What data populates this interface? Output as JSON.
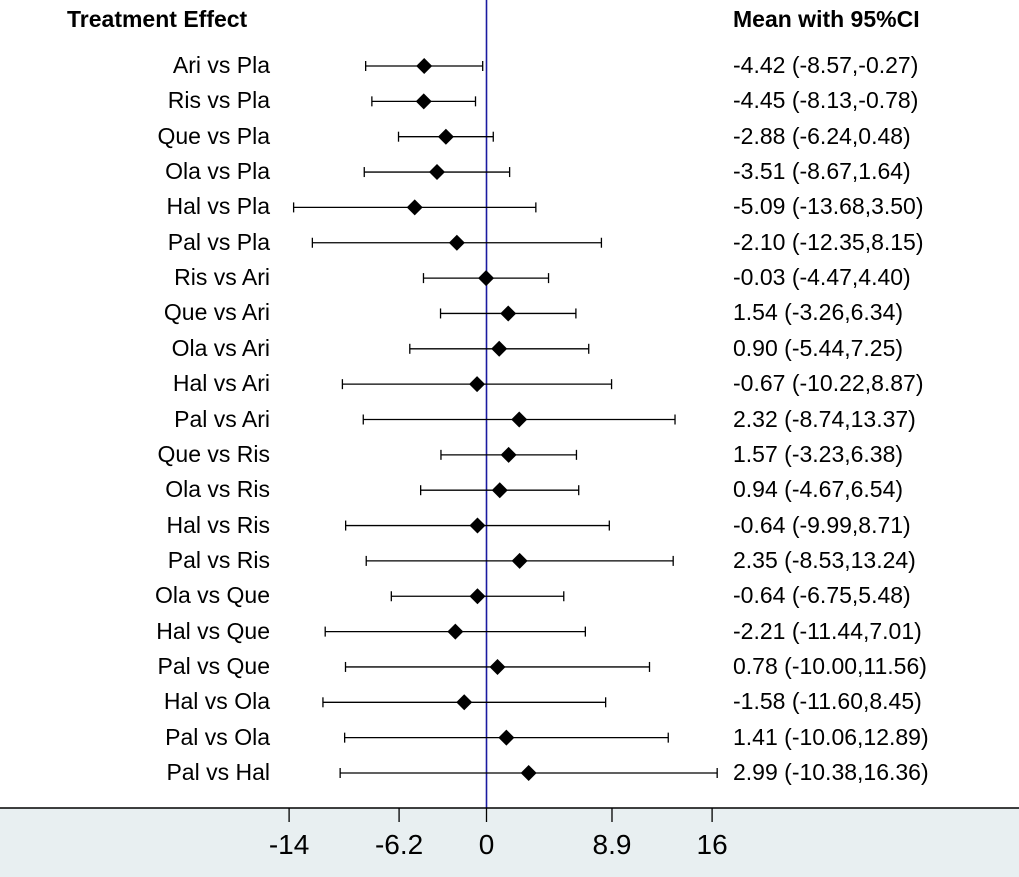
{
  "chart_data": {
    "type": "forest",
    "headers": {
      "left": "Treatment Effect",
      "right": "Mean with 95%CI"
    },
    "rows": [
      {
        "label": "Ari vs Pla",
        "mean": -4.42,
        "lo": -8.57,
        "hi": -0.27,
        "text": "-4.42 (-8.57,-0.27)"
      },
      {
        "label": "Ris vs Pla",
        "mean": -4.45,
        "lo": -8.13,
        "hi": -0.78,
        "text": "-4.45 (-8.13,-0.78)"
      },
      {
        "label": "Que vs Pla",
        "mean": -2.88,
        "lo": -6.24,
        "hi": 0.48,
        "text": "-2.88 (-6.24,0.48)"
      },
      {
        "label": "Ola vs Pla",
        "mean": -3.51,
        "lo": -8.67,
        "hi": 1.64,
        "text": "-3.51 (-8.67,1.64)"
      },
      {
        "label": "Hal vs Pla",
        "mean": -5.09,
        "lo": -13.68,
        "hi": 3.5,
        "text": "-5.09 (-13.68,3.50)"
      },
      {
        "label": "Pal vs Pla",
        "mean": -2.1,
        "lo": -12.35,
        "hi": 8.15,
        "text": "-2.10 (-12.35,8.15)"
      },
      {
        "label": "Ris vs Ari",
        "mean": -0.03,
        "lo": -4.47,
        "hi": 4.4,
        "text": "-0.03 (-4.47,4.40)"
      },
      {
        "label": "Que vs Ari",
        "mean": 1.54,
        "lo": -3.26,
        "hi": 6.34,
        "text": "1.54 (-3.26,6.34)"
      },
      {
        "label": "Ola vs Ari",
        "mean": 0.9,
        "lo": -5.44,
        "hi": 7.25,
        "text": "0.90 (-5.44,7.25)"
      },
      {
        "label": "Hal vs Ari",
        "mean": -0.67,
        "lo": -10.22,
        "hi": 8.87,
        "text": "-0.67 (-10.22,8.87)"
      },
      {
        "label": "Pal vs Ari",
        "mean": 2.32,
        "lo": -8.74,
        "hi": 13.37,
        "text": "2.32 (-8.74,13.37)"
      },
      {
        "label": "Que vs Ris",
        "mean": 1.57,
        "lo": -3.23,
        "hi": 6.38,
        "text": "1.57 (-3.23,6.38)"
      },
      {
        "label": "Ola vs Ris",
        "mean": 0.94,
        "lo": -4.67,
        "hi": 6.54,
        "text": "0.94 (-4.67,6.54)"
      },
      {
        "label": "Hal vs Ris",
        "mean": -0.64,
        "lo": -9.99,
        "hi": 8.71,
        "text": "-0.64 (-9.99,8.71)"
      },
      {
        "label": "Pal vs Ris",
        "mean": 2.35,
        "lo": -8.53,
        "hi": 13.24,
        "text": "2.35 (-8.53,13.24)"
      },
      {
        "label": "Ola vs Que",
        "mean": -0.64,
        "lo": -6.75,
        "hi": 5.48,
        "text": "-0.64 (-6.75,5.48)"
      },
      {
        "label": "Hal vs Que",
        "mean": -2.21,
        "lo": -11.44,
        "hi": 7.01,
        "text": "-2.21 (-11.44,7.01)"
      },
      {
        "label": "Pal vs Que",
        "mean": 0.78,
        "lo": -10.0,
        "hi": 11.56,
        "text": "0.78 (-10.00,11.56)"
      },
      {
        "label": "Hal vs Ola",
        "mean": -1.58,
        "lo": -11.6,
        "hi": 8.45,
        "text": "-1.58 (-11.60,8.45)"
      },
      {
        "label": "Pal vs Ola",
        "mean": 1.41,
        "lo": -10.06,
        "hi": 12.89,
        "text": "1.41 (-10.06,12.89)"
      },
      {
        "label": "Pal vs Hal",
        "mean": 2.99,
        "lo": -10.38,
        "hi": 16.36,
        "text": "2.99 (-10.38,16.36)"
      }
    ],
    "x_ticks": [
      -14,
      -6.2,
      0,
      8.9,
      16
    ],
    "x_tick_labels": [
      "-14",
      "-6.2",
      "0",
      "8.9",
      "16"
    ],
    "xlim": [
      -14,
      16
    ],
    "reference_line": 0,
    "colors": {
      "reference_line": "#1a1aa0",
      "marker": "#000000",
      "axis_band": "#e8eff1"
    }
  }
}
